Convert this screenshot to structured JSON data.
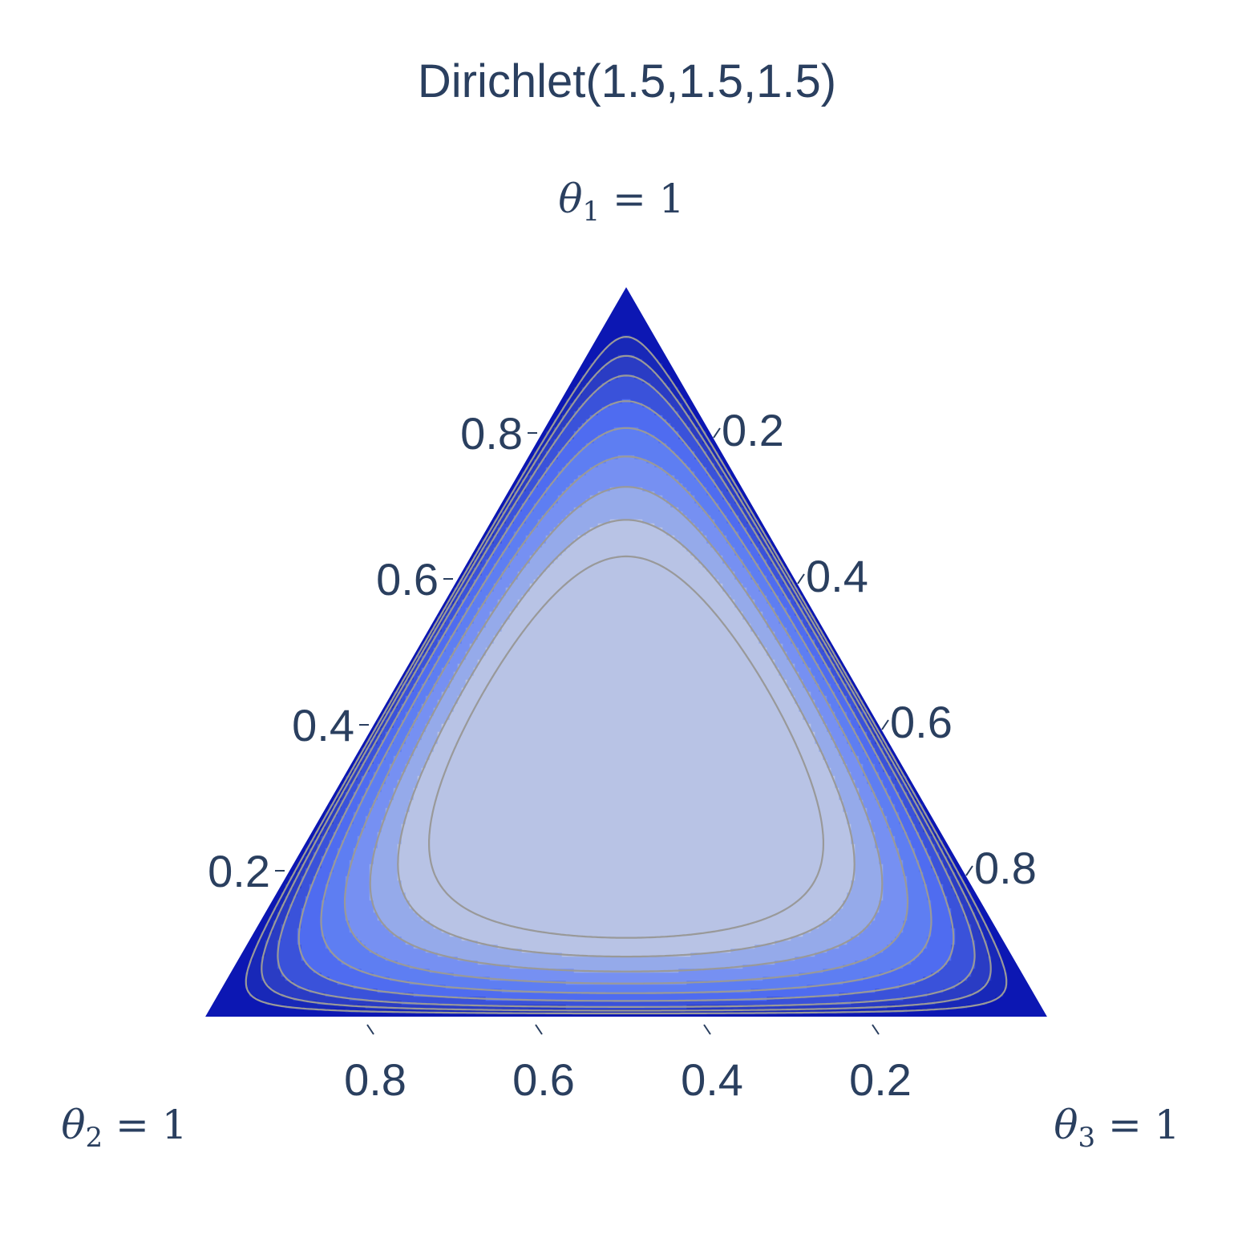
{
  "chart_data": {
    "type": "contour",
    "subtype": "ternary-density",
    "title": "Dirichlet(1.5,1.5,1.5)",
    "alpha": [
      1.5,
      1.5,
      1.5
    ],
    "vertices": [
      {
        "prefix": "θ",
        "sub": "1",
        "suffix": " = 1"
      },
      {
        "prefix": "θ",
        "sub": "2",
        "suffix": " = 1"
      },
      {
        "prefix": "θ",
        "sub": "3",
        "suffix": " = 1"
      }
    ],
    "axes": {
      "theta1": {
        "ticks": [
          0.2,
          0.4,
          0.6,
          0.8
        ],
        "labels": [
          "0.2",
          "0.4",
          "0.6",
          "0.8"
        ]
      },
      "theta3": {
        "ticks": [
          0.2,
          0.4,
          0.6,
          0.8
        ],
        "labels": [
          "0.2",
          "0.4",
          "0.6",
          "0.8"
        ]
      },
      "theta2": {
        "ticks": [
          0.8,
          0.6,
          0.4,
          0.2
        ],
        "labels": [
          "0.8",
          "0.6",
          "0.4",
          "0.2"
        ]
      }
    },
    "contour_levels": [
      0.55,
      0.75,
      0.95,
      1.2,
      1.45,
      1.7,
      1.95,
      2.2,
      2.45
    ],
    "colorscale": [
      "#0c17b3",
      "#1828b8",
      "#2a3cc4",
      "#3a52da",
      "#4f6cf0",
      "#5e7ef2",
      "#7690f2",
      "#95aaea",
      "#b8c3e5"
    ],
    "contour_line_color": "#999999"
  }
}
